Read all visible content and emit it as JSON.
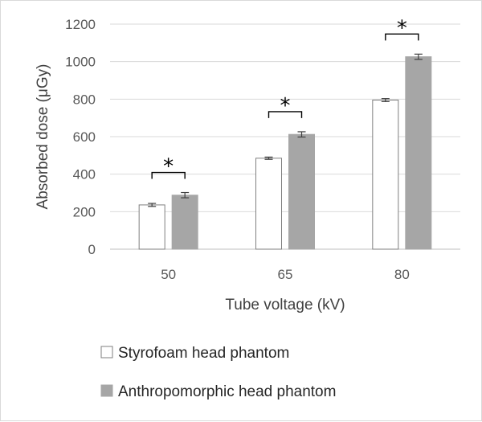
{
  "chart_data": {
    "type": "bar",
    "title": "",
    "xlabel": "Tube voltage (kV)",
    "ylabel": "Absorbed dose (μGy)",
    "categories": [
      "50",
      "65",
      "80"
    ],
    "ylim": [
      0,
      1200
    ],
    "yticks": [
      0,
      200,
      400,
      600,
      800,
      1000,
      1200
    ],
    "grid": true,
    "legend_position": "bottom",
    "series": [
      {
        "name": "Styrofoam head phantom",
        "values": [
          236,
          485,
          795
        ],
        "errors": [
          8,
          6,
          8
        ],
        "color": "#ffffff",
        "stroke": "#7f7f7f"
      },
      {
        "name": "Anthropomorphic head phantom",
        "values": [
          288,
          612,
          1026
        ],
        "errors": [
          14,
          14,
          14
        ],
        "color": "#a6a6a6",
        "stroke": "#a6a6a6"
      }
    ],
    "annotations": [
      {
        "category": "50",
        "text": "*"
      },
      {
        "category": "65",
        "text": "*"
      },
      {
        "category": "80",
        "text": "*"
      }
    ]
  }
}
